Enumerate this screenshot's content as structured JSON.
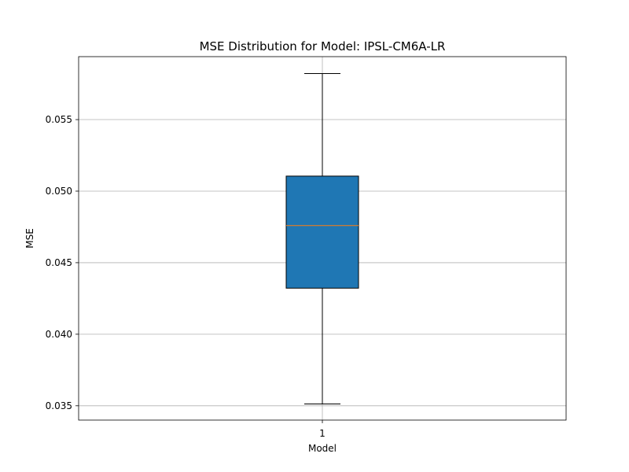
{
  "chart_data": {
    "type": "box",
    "title": "MSE Distribution for Model: IPSL-CM6A-LR",
    "xlabel": "Model",
    "ylabel": "MSE",
    "categories": [
      "1"
    ],
    "boxes": [
      {
        "category": "1",
        "whisker_low": 0.03513,
        "q1": 0.04322,
        "median": 0.04759,
        "q3": 0.05105,
        "whisker_high": 0.05822
      }
    ],
    "ylim": [
      0.034,
      0.0594
    ],
    "yticks": [
      0.035,
      0.04,
      0.045,
      0.05,
      0.055
    ],
    "ytick_labels": [
      "0.035",
      "0.040",
      "0.045",
      "0.050",
      "0.055"
    ],
    "grid": true,
    "colors": {
      "box_fill": "#1f77b4",
      "median_line": "#ff7f0e",
      "edges": "#000000",
      "grid": "#b0b0b0"
    }
  }
}
